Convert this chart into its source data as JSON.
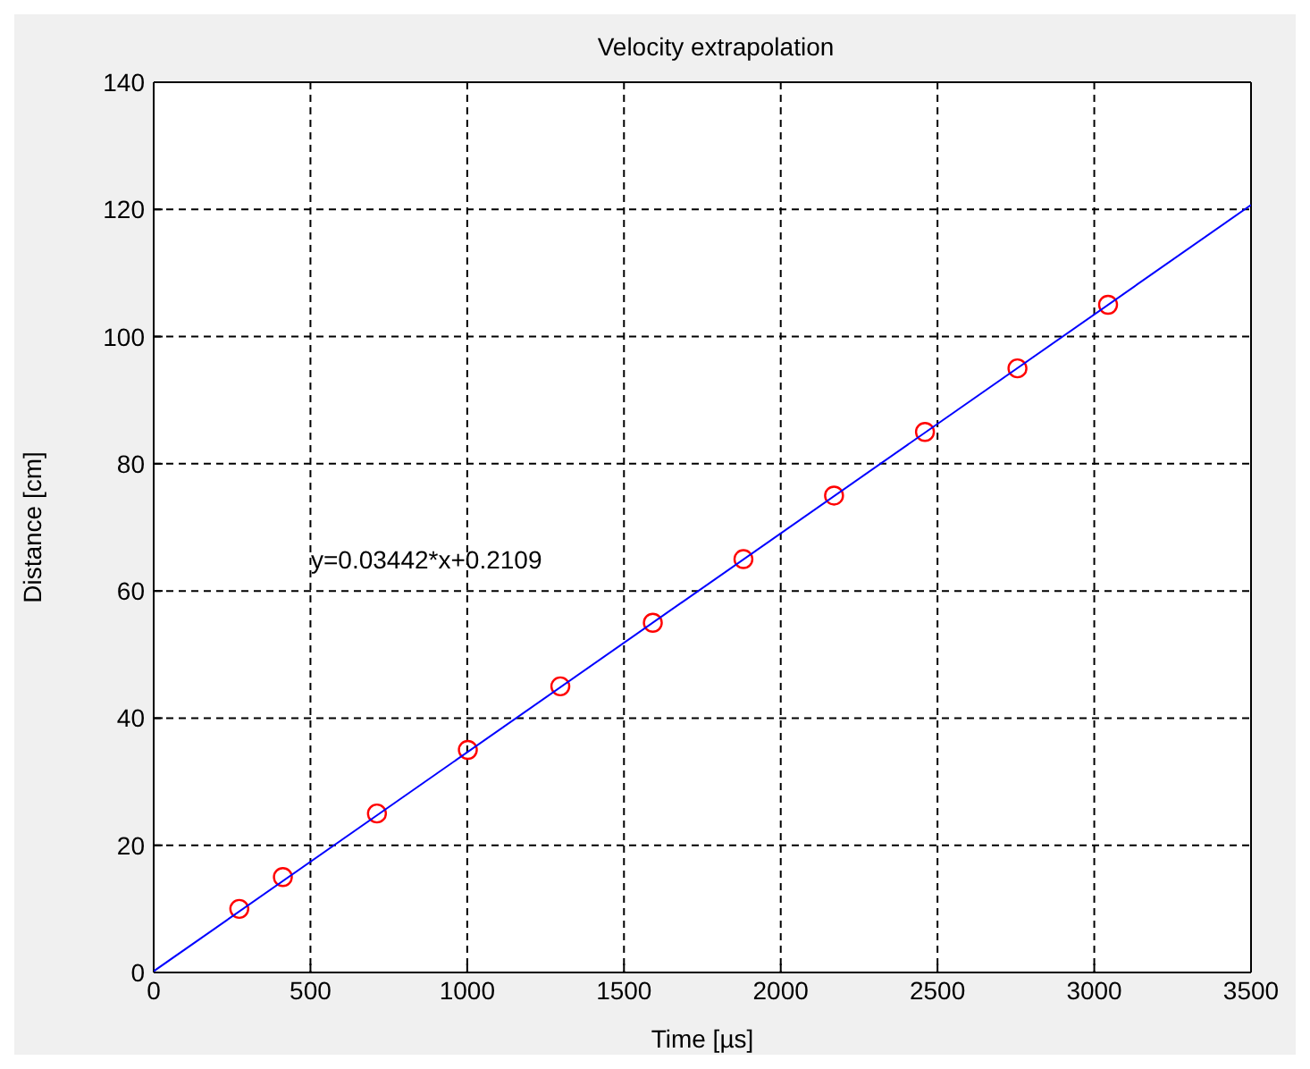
{
  "chart_data": {
    "type": "scatter",
    "title": "Velocity extrapolation",
    "xlabel": "Time [µs]",
    "ylabel": "Distance [cm]",
    "x": [
      273,
      412,
      712,
      1002,
      1297,
      1592,
      1881,
      2170,
      2460,
      2755,
      3044
    ],
    "series": [
      {
        "color": "#ff0000",
        "marker": "circle",
        "values": [
          10,
          15,
          25,
          35,
          45,
          55,
          65,
          75,
          85,
          95,
          105
        ]
      },
      {
        "type": "line",
        "color": "#0000ff",
        "marker": "none",
        "x": [
          0,
          3500
        ],
        "values": [
          0.2,
          120.7
        ]
      }
    ],
    "xlim": [
      0,
      3500
    ],
    "xticks": [
      0,
      500,
      1000,
      1500,
      2000,
      2500,
      3000,
      3500
    ],
    "ylim": [
      0,
      140
    ],
    "yticks": [
      0,
      20,
      40,
      60,
      80,
      100,
      120,
      140
    ],
    "grid": true,
    "annotations": [
      "y=0.03442*x+0.2109"
    ]
  }
}
